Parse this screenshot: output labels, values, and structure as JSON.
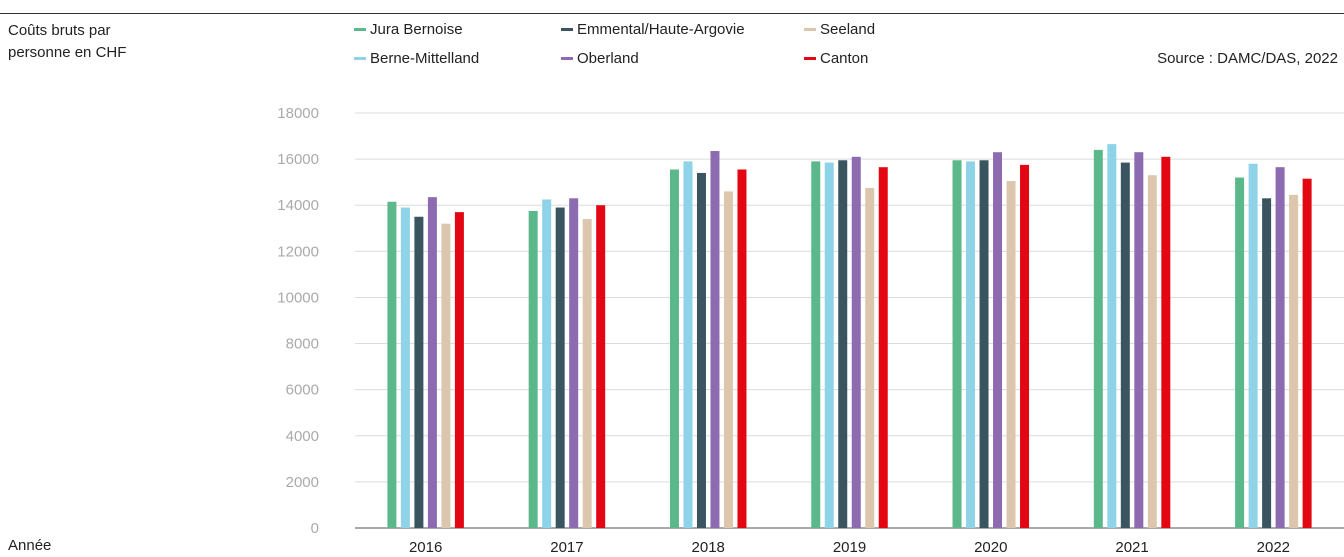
{
  "chart_data": {
    "type": "bar",
    "ylabel_lines": [
      "Coûts bruts par",
      "personne en CHF"
    ],
    "xlabel": "Année",
    "source": "Source : DAMC/DAS, 2022",
    "ylim": [
      0,
      18000
    ],
    "yticks": [
      0,
      2000,
      4000,
      6000,
      8000,
      10000,
      12000,
      14000,
      16000,
      18000
    ],
    "ytick_labels": [
      "0",
      "2000",
      "4000",
      "6000",
      "8000",
      "10000",
      "12000",
      "14000",
      "16000",
      "18000"
    ],
    "grid": true,
    "legend_position": "top",
    "categories": [
      "2016",
      "2017",
      "2018",
      "2019",
      "2020",
      "2021",
      "2022"
    ],
    "series": [
      {
        "name": "Jura Bernoise",
        "color": "#5bb88a",
        "values": [
          14150,
          13750,
          15550,
          15900,
          15950,
          16400,
          15200
        ]
      },
      {
        "name": "Berne-Mittelland",
        "color": "#8fd3e8",
        "values": [
          13900,
          14250,
          15900,
          15850,
          15900,
          16650,
          15800
        ]
      },
      {
        "name": "Emmental/Haute-Argovie",
        "color": "#3b5560",
        "values": [
          13500,
          13900,
          15400,
          15950,
          15950,
          15850,
          14300
        ]
      },
      {
        "name": "Oberland",
        "color": "#8c6bb1",
        "values": [
          14350,
          14300,
          16350,
          16100,
          16300,
          16300,
          15650
        ]
      },
      {
        "name": "Seeland",
        "color": "#dcc7ae",
        "values": [
          13200,
          13400,
          14600,
          14750,
          15050,
          15300,
          14450
        ]
      },
      {
        "name": "Canton",
        "color": "#e30613",
        "values": [
          13700,
          14000,
          15550,
          15650,
          15750,
          16100,
          15150
        ]
      }
    ]
  }
}
